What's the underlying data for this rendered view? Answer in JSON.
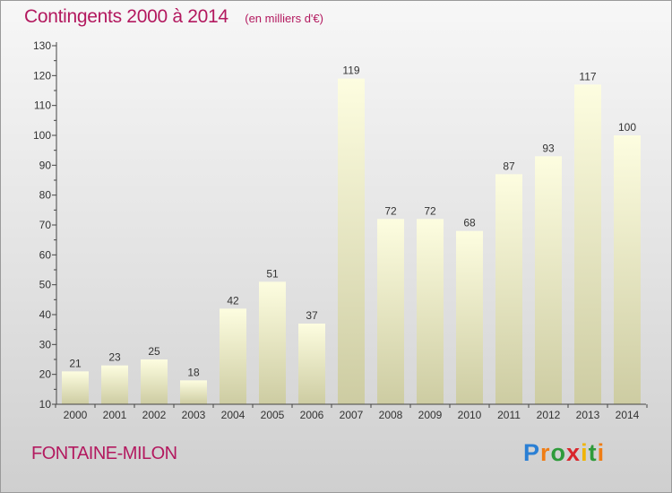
{
  "header": {
    "title": "Contingents 2000 à 2014",
    "unit": "(en milliers d'€)"
  },
  "footer": {
    "commune": "FONTAINE-MILON",
    "brand": "Proxiti"
  },
  "colors": {
    "title": "#b3195f",
    "bar_top": "#fdfde0",
    "bar_bottom": "#cdcca2",
    "axis": "#444444"
  },
  "chart_data": {
    "type": "bar",
    "title": "Contingents 2000 à 2014",
    "xlabel": "",
    "ylabel": "",
    "ylim": [
      10,
      130
    ],
    "yticks": [
      10,
      20,
      30,
      40,
      50,
      60,
      70,
      80,
      90,
      100,
      110,
      120,
      130
    ],
    "grid": false,
    "categories": [
      "2000",
      "2001",
      "2002",
      "2003",
      "2004",
      "2005",
      "2006",
      "2007",
      "2008",
      "2009",
      "2010",
      "2011",
      "2012",
      "2013",
      "2014"
    ],
    "values": [
      21,
      23,
      25,
      18,
      42,
      51,
      37,
      119,
      72,
      72,
      68,
      87,
      93,
      117,
      100
    ]
  }
}
